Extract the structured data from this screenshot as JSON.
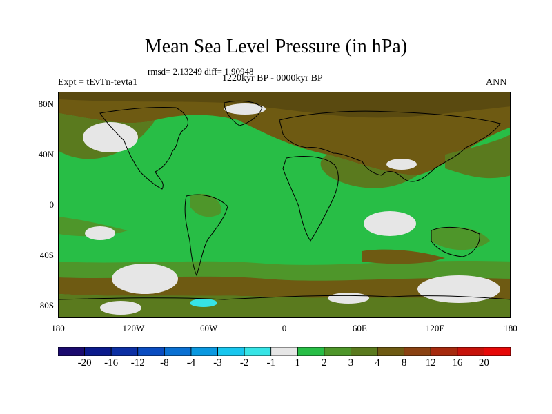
{
  "figure": {
    "title": "Mean Sea Level Pressure (in hPa)",
    "stats_text": "rmsd= 2.13249 diff= 1.90948",
    "period": "1220kyr BP - 0000kyr BP",
    "experiment": "Expt = tEvTn-tevta1",
    "season": "ANN"
  },
  "map": {
    "lat_ticks": [
      "80N",
      "40N",
      "0",
      "40S",
      "80S"
    ],
    "lat_values": [
      80,
      40,
      0,
      -40,
      -80
    ],
    "lon_ticks": [
      "180",
      "120W",
      "60W",
      "0",
      "60E",
      "120E",
      "180"
    ],
    "lon_values": [
      -180,
      -120,
      -60,
      0,
      60,
      120,
      180
    ],
    "lat_range": [
      -90,
      90
    ],
    "lon_range": [
      -180,
      180
    ]
  },
  "colorbar": {
    "labels": [
      "-20",
      "-16",
      "-12",
      "-8",
      "-4",
      "-3",
      "-2",
      "-1",
      "1",
      "2",
      "3",
      "4",
      "8",
      "12",
      "16",
      "20"
    ],
    "colors": [
      "#1a0a6e",
      "#0b1a8c",
      "#0c2fa3",
      "#0a4cc0",
      "#0a70d2",
      "#0a98e0",
      "#18c6ee",
      "#36e4e6",
      "#e6e6e6",
      "#28be46",
      "#4e962a",
      "#5a7a1e",
      "#6e5a12",
      "#8a4212",
      "#a62a0e",
      "#c6120a",
      "#e60808"
    ]
  },
  "colors": {
    "ocean_green": "#28be46",
    "dark_green": "#4e962a",
    "olive": "#5a7a1e",
    "brown": "#6e5a12",
    "red_brown": "#8a4212",
    "light_gray": "#e6e6e6",
    "cyan": "#36e4e6"
  }
}
